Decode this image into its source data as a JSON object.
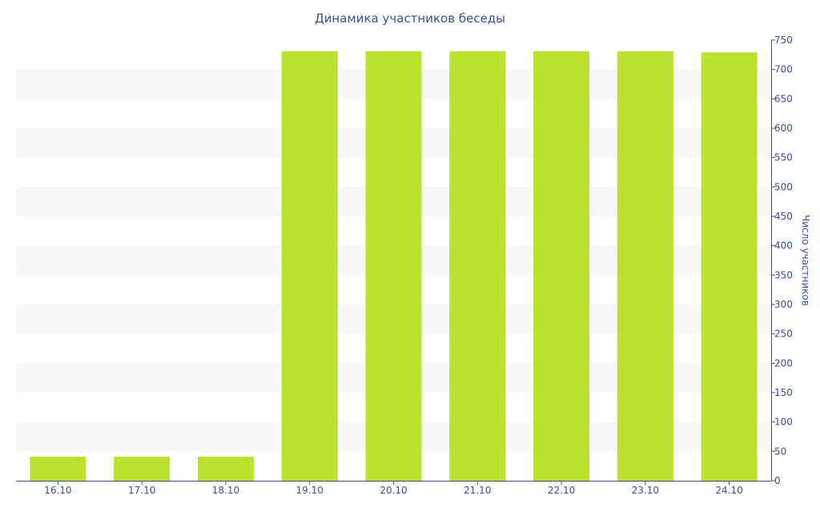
{
  "chart_data": {
    "type": "bar",
    "title": "Динамика участников беседы",
    "xlabel": "",
    "ylabel": "Число участников",
    "categories": [
      "16.10",
      "17.10",
      "18.10",
      "19.10",
      "20.10",
      "21.10",
      "22.10",
      "23.10",
      "24.10"
    ],
    "values": [
      41,
      41,
      41,
      731,
      731,
      731,
      731,
      731,
      729
    ],
    "ylim": [
      0,
      750
    ],
    "yticks": [
      0,
      50,
      100,
      150,
      200,
      250,
      300,
      350,
      400,
      450,
      500,
      550,
      600,
      650,
      700,
      750
    ],
    "y_axis_position": "right",
    "grid": "alternating horizontal bands",
    "bar_color": "#bce130",
    "band_color": "#f7f7f7",
    "text_color": "#3d4f8f"
  }
}
